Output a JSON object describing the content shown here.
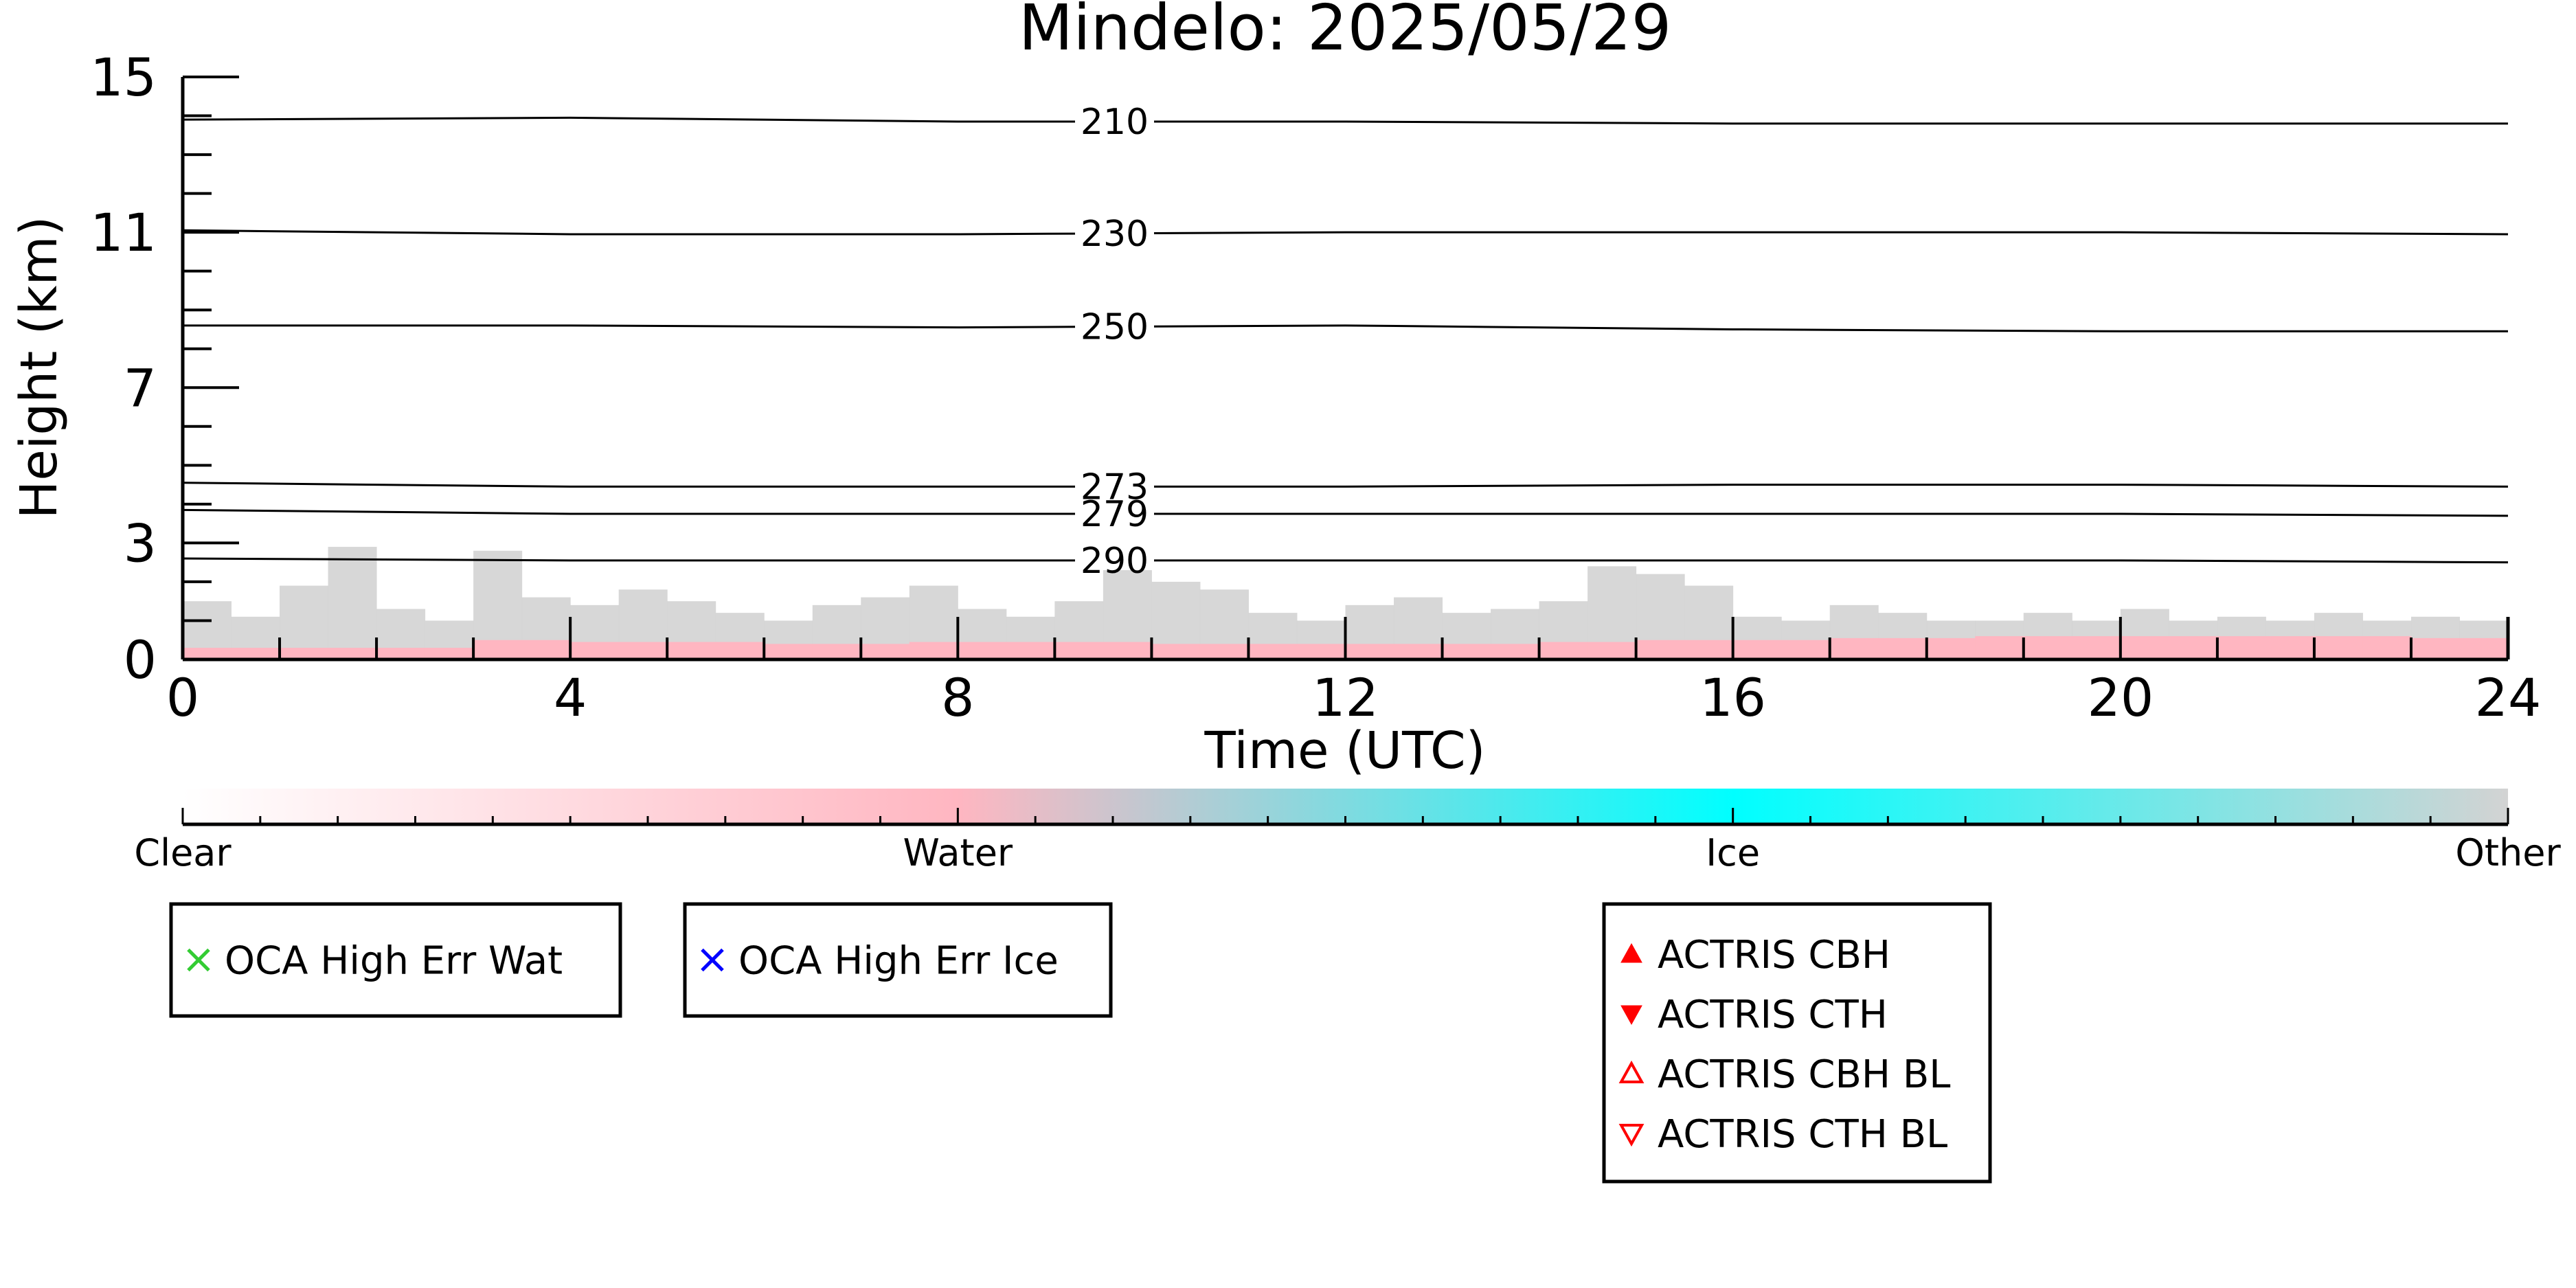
{
  "chart_data": {
    "type": "heatmap",
    "title": "Mindelo: 2025/05/29",
    "xlabel": "Time (UTC)",
    "ylabel": "Height (km)",
    "xlim": [
      0,
      24
    ],
    "ylim": [
      0,
      15
    ],
    "x_ticks": [
      0,
      4,
      8,
      12,
      16,
      20,
      24
    ],
    "y_ticks": [
      0,
      3,
      7,
      11,
      15
    ],
    "grid": false,
    "isotherms": [
      {
        "label": "210",
        "x": [
          0,
          4,
          8,
          12,
          16,
          20,
          24
        ],
        "y": [
          13.9,
          13.95,
          13.85,
          13.85,
          13.8,
          13.8,
          13.8
        ]
      },
      {
        "label": "230",
        "x": [
          0,
          4,
          8,
          12,
          16,
          20,
          24
        ],
        "y": [
          11.05,
          10.95,
          10.95,
          11.0,
          11.0,
          11.0,
          10.95
        ]
      },
      {
        "label": "250",
        "x": [
          0,
          4,
          8,
          12,
          16,
          20,
          24
        ],
        "y": [
          8.6,
          8.6,
          8.55,
          8.6,
          8.5,
          8.45,
          8.45
        ]
      },
      {
        "label": "273",
        "x": [
          0,
          4,
          8,
          12,
          16,
          20,
          24
        ],
        "y": [
          4.55,
          4.45,
          4.45,
          4.45,
          4.5,
          4.5,
          4.45
        ]
      },
      {
        "label": "279",
        "x": [
          0,
          4,
          8,
          12,
          16,
          20,
          24
        ],
        "y": [
          3.85,
          3.75,
          3.75,
          3.75,
          3.75,
          3.75,
          3.7
        ]
      },
      {
        "label": "290",
        "x": [
          0,
          4,
          8,
          12,
          16,
          20,
          24
        ],
        "y": [
          2.6,
          2.55,
          2.55,
          2.55,
          2.55,
          2.55,
          2.5
        ]
      }
    ],
    "other_cloud_height_km": [
      1.5,
      1.1,
      1.9,
      2.9,
      1.3,
      1.0,
      2.8,
      1.6,
      1.4,
      1.8,
      1.5,
      1.2,
      1.0,
      1.4,
      1.6,
      1.9,
      1.3,
      1.1,
      1.5,
      2.3,
      2.0,
      1.8,
      1.2,
      1.0,
      1.4,
      1.6,
      1.2,
      1.3,
      1.5,
      2.4,
      2.2,
      1.9,
      1.1,
      1.0,
      1.4,
      1.2,
      1.0,
      1.0,
      1.2,
      1.0,
      1.3,
      1.0,
      1.1,
      1.0,
      1.2,
      1.0,
      1.1,
      1.0
    ],
    "water_layer_height_km": [
      0.3,
      0.3,
      0.3,
      0.3,
      0.3,
      0.3,
      0.5,
      0.5,
      0.45,
      0.45,
      0.45,
      0.45,
      0.4,
      0.4,
      0.4,
      0.45,
      0.45,
      0.45,
      0.45,
      0.45,
      0.4,
      0.4,
      0.4,
      0.4,
      0.4,
      0.4,
      0.4,
      0.4,
      0.45,
      0.45,
      0.5,
      0.5,
      0.5,
      0.5,
      0.55,
      0.55,
      0.55,
      0.6,
      0.6,
      0.6,
      0.6,
      0.6,
      0.6,
      0.6,
      0.6,
      0.6,
      0.55,
      0.55
    ],
    "colorbar": {
      "labels": [
        "Clear",
        "Water",
        "Ice",
        "Other"
      ],
      "colors": [
        "#ffffff",
        "#ffb6c1",
        "#00ffff",
        "#d3d3d3"
      ]
    },
    "legends": [
      {
        "items": [
          {
            "label": "OCA High Err Wat",
            "marker": "x",
            "color": "#33cc33"
          }
        ]
      },
      {
        "items": [
          {
            "label": "OCA High Err Ice",
            "marker": "x",
            "color": "#0000ff"
          }
        ]
      },
      {
        "items": [
          {
            "label": "ACTRIS CBH",
            "marker": "triangle-up",
            "color": "#ff0000"
          },
          {
            "label": "ACTRIS CTH",
            "marker": "triangle-down",
            "color": "#ff0000"
          },
          {
            "label": "ACTRIS CBH BL",
            "marker": "triangle-up-open",
            "color": "#ff0000"
          },
          {
            "label": "ACTRIS CTH BL",
            "marker": "triangle-down-open",
            "color": "#ff0000"
          }
        ]
      }
    ]
  }
}
